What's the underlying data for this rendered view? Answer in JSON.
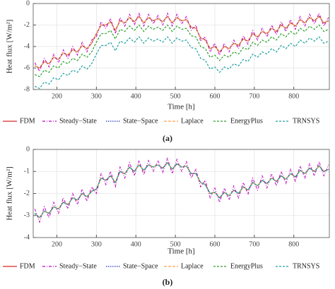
{
  "chart_data": [
    {
      "type": "line",
      "caption": "(a)",
      "x_label": "Time [h]",
      "y_label": "Heat flux [W/m²]",
      "xlim": [
        140,
        890
      ],
      "xticks": [
        200,
        300,
        400,
        500,
        600,
        700,
        800
      ],
      "ylim": [
        -8,
        0
      ],
      "yticks": [
        -8,
        -6,
        -4,
        -2,
        0
      ],
      "grid": true,
      "x": [
        144,
        156,
        168,
        180,
        192,
        204,
        216,
        228,
        240,
        252,
        264,
        276,
        288,
        300,
        312,
        324,
        336,
        348,
        360,
        372,
        384,
        396,
        408,
        420,
        432,
        444,
        456,
        468,
        480,
        492,
        504,
        516,
        528,
        540,
        552,
        564,
        576,
        588,
        600,
        612,
        624,
        636,
        648,
        660,
        672,
        684,
        696,
        708,
        720,
        732,
        744,
        756,
        768,
        780,
        792,
        804,
        816,
        828,
        840,
        852,
        864,
        876,
        888
      ],
      "series": [
        {
          "name": "FDM",
          "color": "#d62728",
          "values": [
            -5.8,
            -6.0,
            -5.4,
            -5.6,
            -5.0,
            -5.2,
            -4.6,
            -4.8,
            -4.3,
            -4.5,
            -3.9,
            -4.2,
            -3.7,
            -2.8,
            -2.0,
            -2.0,
            -1.7,
            -2.5,
            -1.6,
            -1.8,
            -1.3,
            -1.7,
            -1.2,
            -1.8,
            -1.3,
            -1.6,
            -1.4,
            -1.7,
            -1.2,
            -1.8,
            -1.3,
            -1.6,
            -1.5,
            -2.2,
            -2.3,
            -3.2,
            -3.4,
            -4.2,
            -4.0,
            -4.5,
            -4.0,
            -4.2,
            -3.7,
            -3.9,
            -3.3,
            -3.5,
            -2.8,
            -3.1,
            -2.6,
            -2.8,
            -2.3,
            -2.6,
            -2.0,
            -2.3,
            -1.8,
            -2.1,
            -1.5,
            -1.8,
            -1.3,
            -1.6,
            -1.2,
            -1.8,
            -1.6
          ]
        },
        {
          "name": "Steady−State",
          "color": "#c000c0",
          "values": [
            -5.5,
            -6.3,
            -5.1,
            -5.9,
            -4.7,
            -5.5,
            -4.3,
            -5.1,
            -4.0,
            -4.8,
            -3.6,
            -4.5,
            -3.4,
            -3.1,
            -1.7,
            -2.3,
            -1.4,
            -2.8,
            -1.3,
            -2.1,
            -1.0,
            -2.0,
            -0.9,
            -2.1,
            -1.0,
            -1.9,
            -1.1,
            -2.0,
            -0.9,
            -2.1,
            -1.0,
            -1.9,
            -1.2,
            -2.5,
            -2.0,
            -3.5,
            -3.1,
            -4.5,
            -3.7,
            -4.8,
            -3.7,
            -4.5,
            -3.4,
            -4.2,
            -3.0,
            -3.8,
            -2.5,
            -3.4,
            -2.3,
            -3.1,
            -2.0,
            -2.9,
            -1.7,
            -2.6,
            -1.5,
            -2.4,
            -1.2,
            -2.1,
            -1.0,
            -1.9,
            -0.9,
            -2.1,
            -1.3
          ]
        },
        {
          "name": "State−Space",
          "color": "#2030c0",
          "values": [
            -5.8,
            -6.0,
            -5.4,
            -5.6,
            -5.0,
            -5.2,
            -4.6,
            -4.8,
            -4.3,
            -4.5,
            -3.9,
            -4.2,
            -3.7,
            -2.8,
            -2.0,
            -2.0,
            -1.7,
            -2.5,
            -1.6,
            -1.8,
            -1.3,
            -1.7,
            -1.2,
            -1.8,
            -1.3,
            -1.6,
            -1.4,
            -1.7,
            -1.2,
            -1.8,
            -1.3,
            -1.6,
            -1.5,
            -2.2,
            -2.3,
            -3.2,
            -3.4,
            -4.2,
            -4.0,
            -4.5,
            -4.0,
            -4.2,
            -3.7,
            -3.9,
            -3.3,
            -3.5,
            -2.8,
            -3.1,
            -2.6,
            -2.8,
            -2.3,
            -2.6,
            -2.0,
            -2.3,
            -1.8,
            -2.1,
            -1.5,
            -1.8,
            -1.3,
            -1.6,
            -1.2,
            -1.8,
            -1.6
          ]
        },
        {
          "name": "Laplace",
          "color": "#ffa040",
          "values": [
            -5.8,
            -6.0,
            -5.4,
            -5.6,
            -5.0,
            -5.2,
            -4.6,
            -4.8,
            -4.3,
            -4.5,
            -3.9,
            -4.2,
            -3.7,
            -2.8,
            -2.0,
            -2.0,
            -1.7,
            -2.5,
            -1.6,
            -1.8,
            -1.3,
            -1.7,
            -1.2,
            -1.8,
            -1.3,
            -1.6,
            -1.4,
            -1.7,
            -1.2,
            -1.8,
            -1.3,
            -1.6,
            -1.5,
            -2.2,
            -2.3,
            -3.2,
            -3.4,
            -4.2,
            -4.0,
            -4.5,
            -4.0,
            -4.2,
            -3.7,
            -3.9,
            -3.3,
            -3.5,
            -2.8,
            -3.1,
            -2.6,
            -2.8,
            -2.3,
            -2.6,
            -2.0,
            -2.3,
            -1.8,
            -2.1,
            -1.5,
            -1.8,
            -1.3,
            -1.6,
            -1.2,
            -1.8,
            -1.6
          ]
        },
        {
          "name": "EnergyPlus",
          "color": "#2ca02c",
          "values": [
            -6.6,
            -6.8,
            -6.2,
            -6.4,
            -5.8,
            -6.0,
            -5.4,
            -5.6,
            -5.1,
            -5.3,
            -4.7,
            -5.0,
            -4.5,
            -3.6,
            -2.8,
            -2.8,
            -2.5,
            -3.3,
            -2.4,
            -2.6,
            -2.1,
            -2.5,
            -2.0,
            -2.6,
            -2.1,
            -2.4,
            -2.2,
            -2.5,
            -2.0,
            -2.6,
            -2.1,
            -2.4,
            -2.3,
            -3.0,
            -3.1,
            -4.0,
            -4.2,
            -5.0,
            -4.8,
            -5.3,
            -4.8,
            -5.0,
            -4.5,
            -4.7,
            -4.1,
            -4.3,
            -3.6,
            -3.9,
            -3.4,
            -3.6,
            -3.1,
            -3.4,
            -2.8,
            -3.1,
            -2.6,
            -2.9,
            -2.3,
            -2.6,
            -2.1,
            -2.4,
            -2.0,
            -2.6,
            -2.4
          ]
        },
        {
          "name": "TRNSYS",
          "color": "#20a0a0",
          "values": [
            -7.7,
            -7.9,
            -7.3,
            -7.5,
            -6.9,
            -7.1,
            -6.5,
            -6.7,
            -6.2,
            -6.4,
            -5.8,
            -6.1,
            -5.6,
            -4.7,
            -3.9,
            -3.9,
            -3.6,
            -4.4,
            -3.5,
            -3.7,
            -3.2,
            -3.6,
            -3.1,
            -3.7,
            -3.2,
            -3.5,
            -3.3,
            -3.6,
            -3.1,
            -3.7,
            -3.2,
            -3.5,
            -3.4,
            -4.1,
            -4.2,
            -5.1,
            -5.3,
            -6.1,
            -5.9,
            -6.4,
            -5.9,
            -6.1,
            -5.6,
            -5.8,
            -5.2,
            -5.4,
            -4.7,
            -5.0,
            -4.5,
            -4.7,
            -4.2,
            -4.5,
            -3.9,
            -4.2,
            -3.7,
            -4.0,
            -3.4,
            -3.7,
            -3.2,
            -3.5,
            -3.1,
            -3.7,
            -3.5
          ]
        }
      ]
    },
    {
      "type": "line",
      "caption": "(b)",
      "x_label": "Time [h]",
      "y_label": "Heat flux [W/m²]",
      "xlim": [
        140,
        890
      ],
      "xticks": [
        200,
        300,
        400,
        500,
        600,
        700,
        800
      ],
      "ylim": [
        -4,
        0
      ],
      "yticks": [
        -4,
        -3,
        -2,
        -1,
        0
      ],
      "grid": true,
      "x": [
        144,
        156,
        168,
        180,
        192,
        204,
        216,
        228,
        240,
        252,
        264,
        276,
        288,
        300,
        312,
        324,
        336,
        348,
        360,
        372,
        384,
        396,
        408,
        420,
        432,
        444,
        456,
        468,
        480,
        492,
        504,
        516,
        528,
        540,
        552,
        564,
        576,
        588,
        600,
        612,
        624,
        636,
        648,
        660,
        672,
        684,
        696,
        708,
        720,
        732,
        744,
        756,
        768,
        780,
        792,
        804,
        816,
        828,
        840,
        852,
        864,
        876,
        888
      ],
      "series": [
        {
          "name": "FDM",
          "color": "#d62728",
          "values": [
            -2.9,
            -3.1,
            -2.8,
            -2.9,
            -2.6,
            -2.7,
            -2.4,
            -2.5,
            -2.2,
            -2.3,
            -2.0,
            -2.15,
            -1.9,
            -1.8,
            -1.3,
            -1.4,
            -1.2,
            -1.5,
            -1.0,
            -1.1,
            -0.8,
            -1.0,
            -0.7,
            -0.95,
            -0.7,
            -0.8,
            -0.7,
            -0.85,
            -0.6,
            -0.9,
            -0.65,
            -0.8,
            -0.75,
            -1.1,
            -1.1,
            -1.5,
            -1.6,
            -2.0,
            -1.95,
            -2.2,
            -1.95,
            -2.1,
            -1.85,
            -2.0,
            -1.7,
            -1.85,
            -1.5,
            -1.65,
            -1.4,
            -1.55,
            -1.3,
            -1.45,
            -1.2,
            -1.35,
            -1.1,
            -1.25,
            -0.95,
            -1.1,
            -0.85,
            -1.0,
            -0.75,
            -1.0,
            -0.9
          ]
        },
        {
          "name": "Steady−State",
          "color": "#c000c0",
          "values": [
            -2.7,
            -3.3,
            -2.6,
            -3.1,
            -2.4,
            -2.9,
            -2.2,
            -2.7,
            -2.0,
            -2.5,
            -1.8,
            -2.35,
            -1.7,
            -2.0,
            -1.1,
            -1.6,
            -1.0,
            -1.7,
            -0.8,
            -1.3,
            -0.6,
            -1.2,
            -0.5,
            -1.15,
            -0.5,
            -1.0,
            -0.5,
            -1.05,
            -0.4,
            -1.1,
            -0.45,
            -1.0,
            -0.55,
            -1.3,
            -0.9,
            -1.7,
            -1.4,
            -2.2,
            -1.75,
            -2.4,
            -1.75,
            -2.3,
            -1.65,
            -2.2,
            -1.5,
            -2.05,
            -1.3,
            -1.85,
            -1.2,
            -1.75,
            -1.1,
            -1.65,
            -1.0,
            -1.55,
            -0.9,
            -1.45,
            -0.75,
            -1.3,
            -0.65,
            -1.2,
            -0.55,
            -1.2,
            -0.7
          ]
        },
        {
          "name": "State−Space",
          "color": "#2030c0",
          "values": [
            -2.9,
            -3.1,
            -2.8,
            -2.9,
            -2.6,
            -2.7,
            -2.4,
            -2.5,
            -2.2,
            -2.3,
            -2.0,
            -2.15,
            -1.9,
            -1.8,
            -1.3,
            -1.4,
            -1.2,
            -1.5,
            -1.0,
            -1.1,
            -0.8,
            -1.0,
            -0.7,
            -0.95,
            -0.7,
            -0.8,
            -0.7,
            -0.85,
            -0.6,
            -0.9,
            -0.65,
            -0.8,
            -0.75,
            -1.1,
            -1.1,
            -1.5,
            -1.6,
            -2.0,
            -1.95,
            -2.2,
            -1.95,
            -2.1,
            -1.85,
            -2.0,
            -1.7,
            -1.85,
            -1.5,
            -1.65,
            -1.4,
            -1.55,
            -1.3,
            -1.45,
            -1.2,
            -1.35,
            -1.1,
            -1.25,
            -0.95,
            -1.1,
            -0.85,
            -1.0,
            -0.75,
            -1.0,
            -0.9
          ]
        },
        {
          "name": "Laplace",
          "color": "#ffa040",
          "values": [
            -2.9,
            -3.1,
            -2.8,
            -2.9,
            -2.6,
            -2.7,
            -2.4,
            -2.5,
            -2.2,
            -2.3,
            -2.0,
            -2.15,
            -1.9,
            -1.8,
            -1.3,
            -1.4,
            -1.2,
            -1.5,
            -1.0,
            -1.1,
            -0.8,
            -1.0,
            -0.7,
            -0.95,
            -0.7,
            -0.8,
            -0.7,
            -0.85,
            -0.6,
            -0.9,
            -0.65,
            -0.8,
            -0.75,
            -1.1,
            -1.1,
            -1.5,
            -1.6,
            -2.0,
            -1.95,
            -2.2,
            -1.95,
            -2.1,
            -1.85,
            -2.0,
            -1.7,
            -1.85,
            -1.5,
            -1.65,
            -1.4,
            -1.55,
            -1.3,
            -1.45,
            -1.2,
            -1.35,
            -1.1,
            -1.25,
            -0.95,
            -1.1,
            -0.85,
            -1.0,
            -0.75,
            -1.0,
            -0.9
          ]
        },
        {
          "name": "EnergyPlus",
          "color": "#2ca02c",
          "values": [
            -2.9,
            -3.1,
            -2.8,
            -2.9,
            -2.6,
            -2.7,
            -2.4,
            -2.5,
            -2.2,
            -2.3,
            -2.0,
            -2.15,
            -1.9,
            -1.8,
            -1.3,
            -1.4,
            -1.2,
            -1.5,
            -1.0,
            -1.1,
            -0.8,
            -1.0,
            -0.7,
            -0.95,
            -0.7,
            -0.8,
            -0.7,
            -0.85,
            -0.6,
            -0.9,
            -0.65,
            -0.8,
            -0.75,
            -1.1,
            -1.1,
            -1.5,
            -1.6,
            -2.0,
            -1.95,
            -2.2,
            -1.95,
            -2.1,
            -1.85,
            -2.0,
            -1.7,
            -1.85,
            -1.5,
            -1.65,
            -1.4,
            -1.55,
            -1.3,
            -1.45,
            -1.2,
            -1.35,
            -1.1,
            -1.25,
            -0.95,
            -1.1,
            -0.85,
            -1.0,
            -0.75,
            -1.0,
            -0.9
          ]
        },
        {
          "name": "TRNSYS",
          "color": "#20a0a0",
          "values": [
            -2.9,
            -3.1,
            -2.8,
            -2.9,
            -2.6,
            -2.7,
            -2.4,
            -2.5,
            -2.2,
            -2.3,
            -2.0,
            -2.15,
            -1.9,
            -1.8,
            -1.3,
            -1.4,
            -1.2,
            -1.5,
            -1.0,
            -1.1,
            -0.8,
            -1.0,
            -0.7,
            -0.95,
            -0.7,
            -0.8,
            -0.7,
            -0.85,
            -0.6,
            -0.9,
            -0.65,
            -0.8,
            -0.75,
            -1.1,
            -1.1,
            -1.5,
            -1.6,
            -2.0,
            -1.95,
            -2.2,
            -1.95,
            -2.1,
            -1.85,
            -2.0,
            -1.7,
            -1.85,
            -1.5,
            -1.65,
            -1.4,
            -1.55,
            -1.3,
            -1.45,
            -1.2,
            -1.35,
            -1.1,
            -1.25,
            -0.95,
            -1.1,
            -0.85,
            -1.0,
            -0.75,
            -1.0,
            -0.9
          ]
        }
      ]
    }
  ]
}
